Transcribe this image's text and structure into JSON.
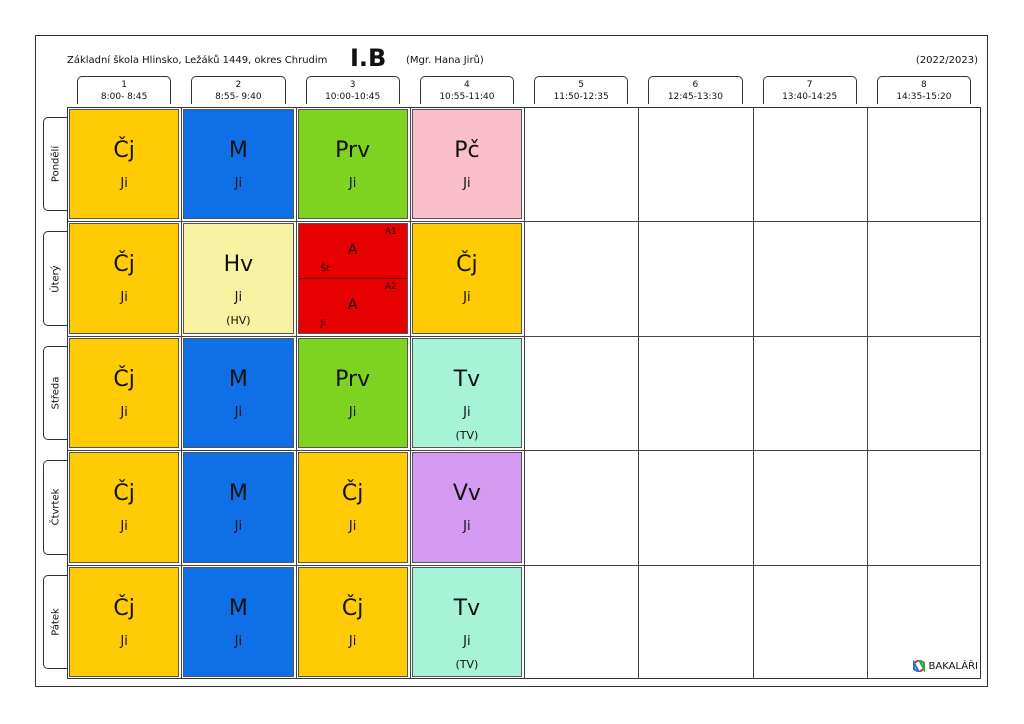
{
  "header": {
    "school": "Základní škola Hlinsko, Ležáků 1449, okres Chrudim",
    "class": "I.B",
    "teacher": "(Mgr. Hana Jirů)",
    "year": "(2022/2023)"
  },
  "periods": [
    {
      "num": "1",
      "time": "8:00- 8:45"
    },
    {
      "num": "2",
      "time": "8:55- 9:40"
    },
    {
      "num": "3",
      "time": "10:00-10:45"
    },
    {
      "num": "4",
      "time": "10:55-11:40"
    },
    {
      "num": "5",
      "time": "11:50-12:35"
    },
    {
      "num": "6",
      "time": "12:45-13:30"
    },
    {
      "num": "7",
      "time": "13:40-14:25"
    },
    {
      "num": "8",
      "time": "14:35-15:20"
    }
  ],
  "days": [
    "Pondělí",
    "Úterý",
    "Středa",
    "Čtvrtek",
    "Pátek"
  ],
  "colors": {
    "Cj": "#FFCB05",
    "M": "#0F6FE6",
    "Prv": "#7ED321",
    "Pc": "#FBBFCB",
    "Hv": "#F7F3A3",
    "A": "#E60000",
    "Tv": "#A7F3D8",
    "Vv": "#D49AF2"
  },
  "lessons": [
    [
      {
        "s": "Čj",
        "t": "Ji",
        "c": "Cj"
      },
      {
        "s": "M",
        "t": "Ji",
        "c": "M"
      },
      {
        "s": "Prv",
        "t": "Ji",
        "c": "Prv"
      },
      {
        "s": "Pč",
        "t": "Ji",
        "c": "Pc"
      }
    ],
    [
      {
        "s": "Čj",
        "t": "Ji",
        "c": "Cj"
      },
      {
        "s": "Hv",
        "t": "Ji",
        "r": "(HV)",
        "c": "Hv"
      },
      {
        "split": [
          {
            "s": "A",
            "g": "A1",
            "t": "Št"
          },
          {
            "s": "A",
            "g": "A2",
            "t": "Ji"
          }
        ],
        "c": "A"
      },
      {
        "s": "Čj",
        "t": "Ji",
        "c": "Cj"
      }
    ],
    [
      {
        "s": "Čj",
        "t": "Ji",
        "c": "Cj"
      },
      {
        "s": "M",
        "t": "Ji",
        "c": "M"
      },
      {
        "s": "Prv",
        "t": "Ji",
        "c": "Prv"
      },
      {
        "s": "Tv",
        "t": "Ji",
        "r": "(TV)",
        "c": "Tv"
      }
    ],
    [
      {
        "s": "Čj",
        "t": "Ji",
        "c": "Cj"
      },
      {
        "s": "M",
        "t": "Ji",
        "c": "M"
      },
      {
        "s": "Čj",
        "t": "Ji",
        "c": "Cj"
      },
      {
        "s": "Vv",
        "t": "Ji",
        "c": "Vv"
      }
    ],
    [
      {
        "s": "Čj",
        "t": "Ji",
        "c": "Cj"
      },
      {
        "s": "M",
        "t": "Ji",
        "c": "M"
      },
      {
        "s": "Čj",
        "t": "Ji",
        "c": "Cj"
      },
      {
        "s": "Tv",
        "t": "Ji",
        "r": "(TV)",
        "c": "Tv"
      }
    ]
  ],
  "logo": {
    "text": "BAKALÁŘI",
    "icon": "bakalari-logo-icon"
  }
}
